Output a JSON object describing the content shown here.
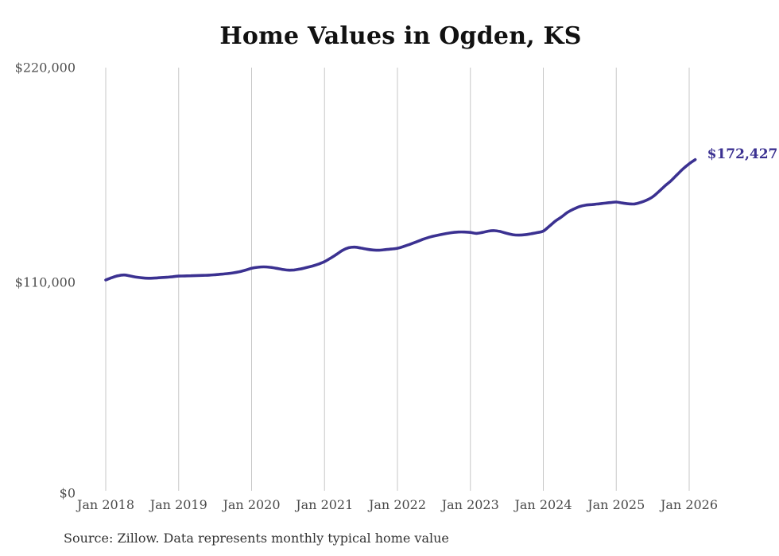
{
  "chart_data": {
    "type": "line",
    "title": "Home Values in Ogden, KS",
    "series_name": "Typical home value",
    "x_frequency": "monthly",
    "x_tick_labels": [
      "Jan 2018",
      "Jan 2019",
      "Jan 2020",
      "Jan 2021",
      "Jan 2022",
      "Jan 2023",
      "Jan 2024",
      "Jan 2025",
      "Jan 2026"
    ],
    "y_tick_labels": [
      "$220,000",
      "$110,000",
      "$0"
    ],
    "y_axis_range": [
      0,
      220000
    ],
    "grid": "vertical-only",
    "legend": "none",
    "line_color": "#3b3191",
    "gridline_color": "#c7c7c7",
    "end_label": "$172,427",
    "final_value": 172427,
    "source_note": "Source: Zillow. Data represents monthly typical home value",
    "months": [
      "2018-01",
      "2018-02",
      "2018-03",
      "2018-04",
      "2018-05",
      "2018-06",
      "2018-07",
      "2018-08",
      "2018-09",
      "2018-10",
      "2018-11",
      "2018-12",
      "2019-01",
      "2019-02",
      "2019-03",
      "2019-04",
      "2019-05",
      "2019-06",
      "2019-07",
      "2019-08",
      "2019-09",
      "2019-10",
      "2019-11",
      "2019-12",
      "2020-01",
      "2020-02",
      "2020-03",
      "2020-04",
      "2020-05",
      "2020-06",
      "2020-07",
      "2020-08",
      "2020-09",
      "2020-10",
      "2020-11",
      "2020-12",
      "2021-01",
      "2021-02",
      "2021-03",
      "2021-04",
      "2021-05",
      "2021-06",
      "2021-07",
      "2021-08",
      "2021-09",
      "2021-10",
      "2021-11",
      "2021-12",
      "2022-01",
      "2022-02",
      "2022-03",
      "2022-04",
      "2022-05",
      "2022-06",
      "2022-07",
      "2022-08",
      "2022-09",
      "2022-10",
      "2022-11",
      "2022-12",
      "2023-01",
      "2023-02",
      "2023-03",
      "2023-04",
      "2023-05",
      "2023-06",
      "2023-07",
      "2023-08",
      "2023-09",
      "2023-10",
      "2023-11",
      "2023-12",
      "2024-01",
      "2024-02",
      "2024-03",
      "2024-04",
      "2024-05",
      "2024-06",
      "2024-07",
      "2024-08",
      "2024-09",
      "2024-10",
      "2024-11",
      "2024-12",
      "2025-01",
      "2025-02",
      "2025-03",
      "2025-04",
      "2025-05",
      "2025-06",
      "2025-07",
      "2025-08",
      "2025-09",
      "2025-10",
      "2025-11",
      "2025-12",
      "2026-01",
      "2026-02"
    ],
    "values": [
      110200,
      111400,
      112400,
      112800,
      112300,
      111700,
      111300,
      111100,
      111200,
      111400,
      111600,
      111900,
      112200,
      112300,
      112400,
      112500,
      112600,
      112700,
      112900,
      113200,
      113500,
      113900,
      114500,
      115300,
      116300,
      116800,
      117000,
      116800,
      116300,
      115700,
      115300,
      115400,
      115900,
      116600,
      117400,
      118400,
      119700,
      121500,
      123500,
      125600,
      126900,
      127200,
      126700,
      126100,
      125700,
      125600,
      125900,
      126200,
      126600,
      127500,
      128600,
      129800,
      131000,
      132100,
      132900,
      133600,
      134200,
      134700,
      135000,
      135000,
      134800,
      134300,
      134800,
      135500,
      135700,
      135200,
      134300,
      133600,
      133400,
      133600,
      134100,
      134700,
      135500,
      138000,
      140700,
      142800,
      145200,
      146900,
      148200,
      148900,
      149200,
      149500,
      149900,
      150200,
      150500,
      150000,
      149600,
      149500,
      150300,
      151500,
      153200,
      155900,
      158800,
      161500,
      164600,
      167700,
      170300,
      172427
    ]
  }
}
